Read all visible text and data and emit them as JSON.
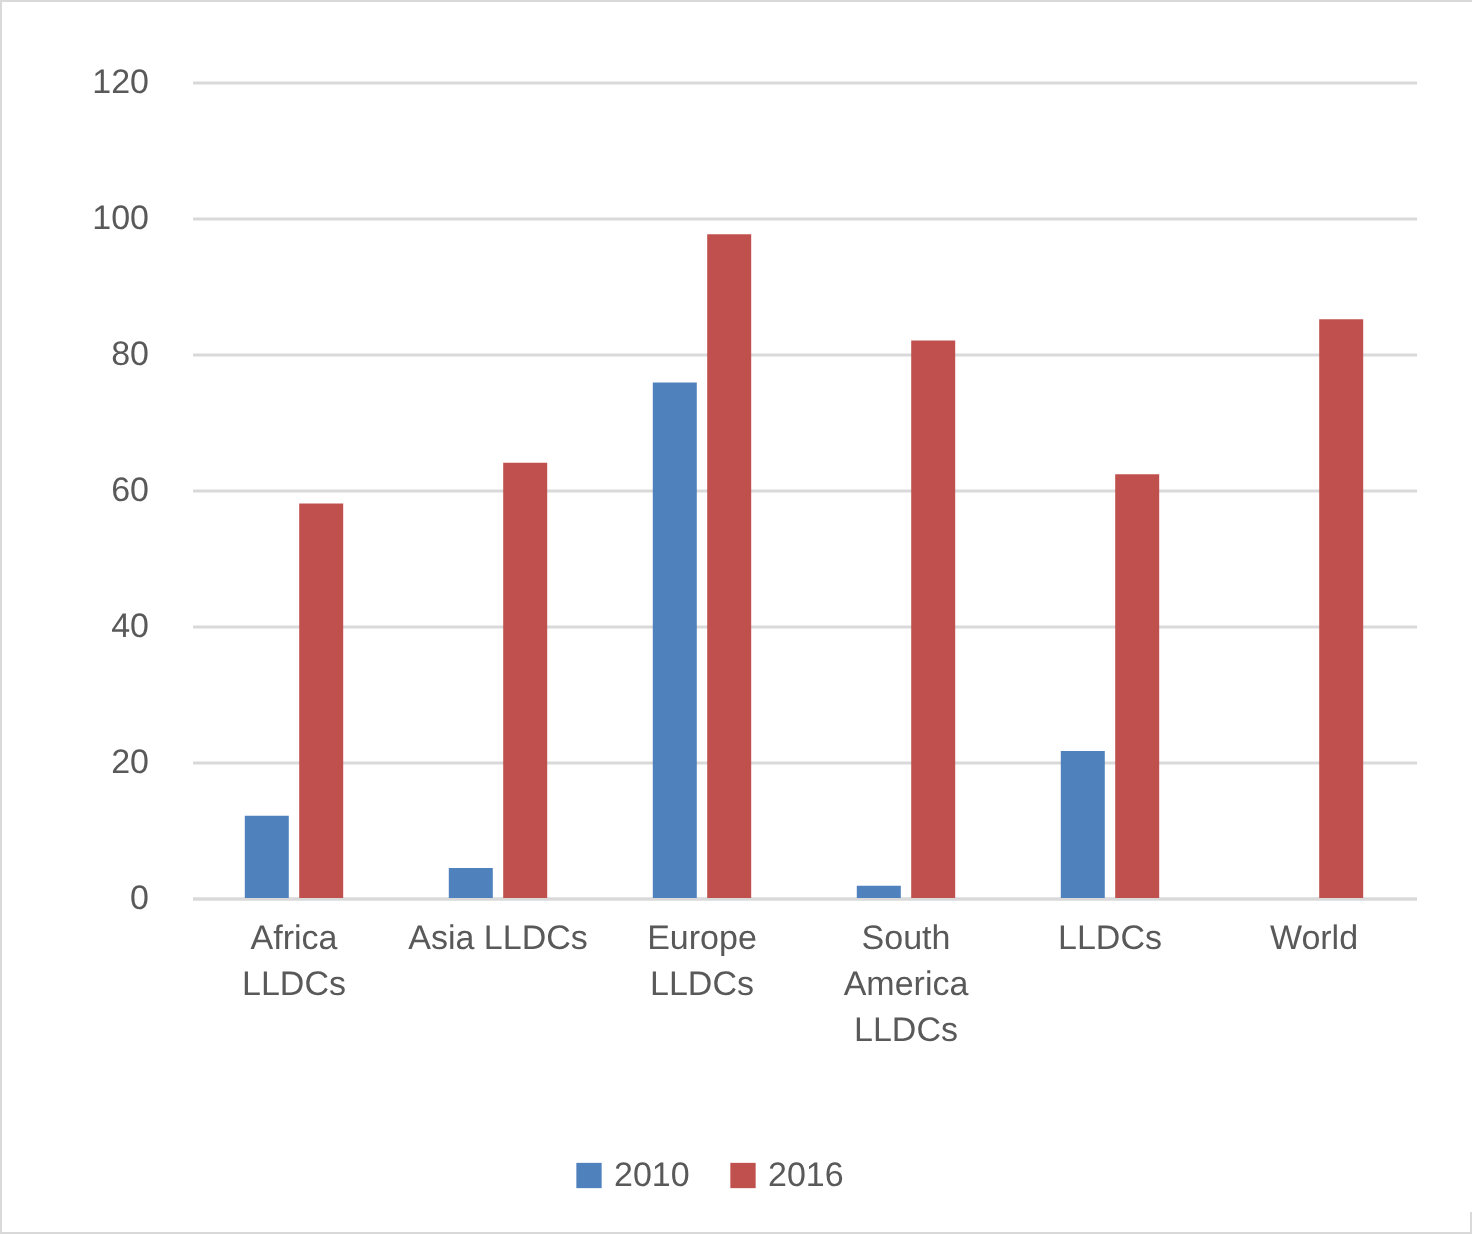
{
  "chart_data": {
    "type": "bar",
    "categories": [
      "Africa LLDCs",
      "Asia LLDCs",
      "Europe LLDCs",
      "South America LLDCs",
      "LLDCs",
      "World"
    ],
    "series": [
      {
        "name": "2010",
        "color": "#4f81bd",
        "values": [
          12.1,
          4.4,
          75.8,
          1.8,
          21.6,
          null
        ]
      },
      {
        "name": "2016",
        "color": "#c0504d",
        "values": [
          58.0,
          64.0,
          97.6,
          82.0,
          62.3,
          85.1
        ]
      }
    ],
    "ylim": [
      0,
      120
    ],
    "yticks": [
      0,
      20,
      40,
      60,
      80,
      100,
      120
    ],
    "grid": "y",
    "legend": "bottom"
  }
}
